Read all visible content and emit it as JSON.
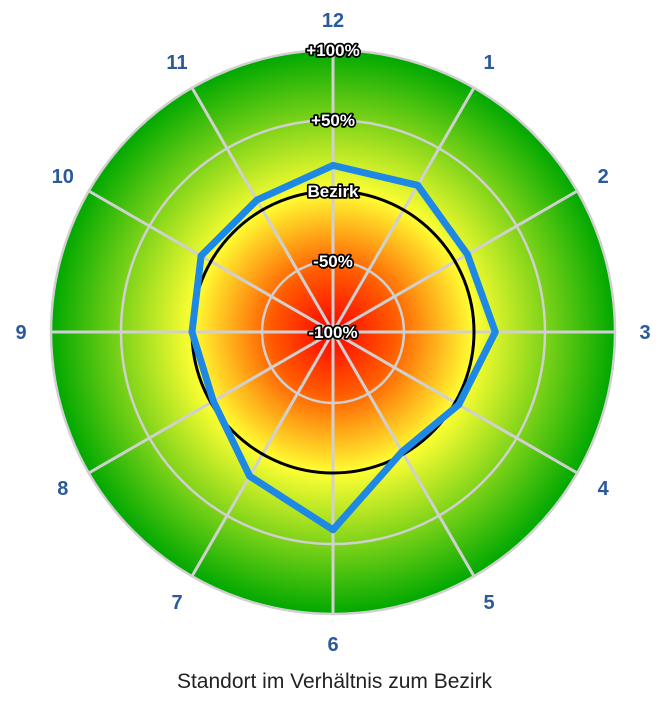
{
  "caption": "Standort im Verhältnis zum Bezirk",
  "colors": {
    "gradient_center": "#ff0000",
    "gradient_mid": "#ffff33",
    "gradient_outer": "#00a800",
    "spokes": "#d0d0d0",
    "reference_line": "#000000",
    "series_line": "#1e88e5",
    "category_text": "#2a5a9a"
  },
  "chart_data": {
    "type": "radar",
    "categories": [
      "12",
      "1",
      "2",
      "3",
      "4",
      "5",
      "6",
      "7",
      "8",
      "9",
      "10",
      "11"
    ],
    "range": [
      -100,
      100
    ],
    "ring_labels": [
      {
        "value": -100,
        "text": "-100%"
      },
      {
        "value": -50,
        "text": "-50%"
      },
      {
        "value": 0,
        "text": "Bezirk"
      },
      {
        "value": 50,
        "text": "+50%"
      },
      {
        "value": 100,
        "text": "+100%"
      }
    ],
    "reference": {
      "value": 0
    },
    "series": [
      {
        "values": [
          18,
          20,
          10,
          15,
          3,
          -2,
          40,
          18,
          -2,
          0,
          8,
          8
        ]
      }
    ]
  }
}
